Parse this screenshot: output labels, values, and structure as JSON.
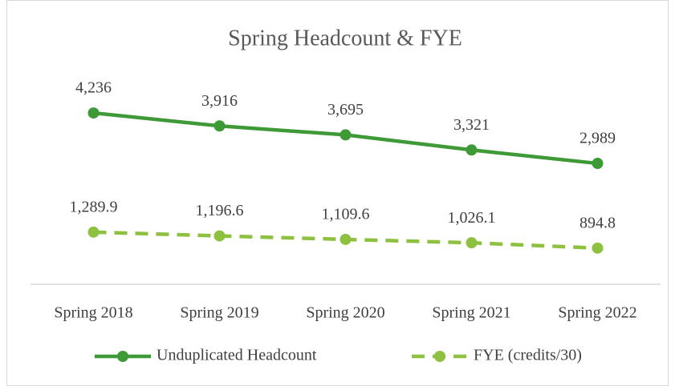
{
  "chart_data": {
    "type": "line",
    "title": "Spring Headcount & FYE",
    "categories": [
      "Spring 2018",
      "Spring 2019",
      "Spring 2020",
      "Spring 2021",
      "Spring 2022"
    ],
    "series": [
      {
        "name": "Unduplicated Headcount",
        "color": "#3e9a36",
        "dashed": false,
        "values": [
          4236,
          3916,
          3695,
          3321,
          2989
        ],
        "value_labels": [
          "4,236",
          "3,916",
          "3,695",
          "3,321",
          "2,989"
        ]
      },
      {
        "name": "FYE (credits/30)",
        "color": "#8ec140",
        "dashed": true,
        "values": [
          1289.9,
          1196.6,
          1109.6,
          1026.1,
          894.8
        ],
        "value_labels": [
          "1,289.9",
          "1,196.6",
          "1,109.6",
          "1,026.1",
          "894.8"
        ]
      }
    ],
    "ylim": [
      0,
      5000
    ]
  }
}
